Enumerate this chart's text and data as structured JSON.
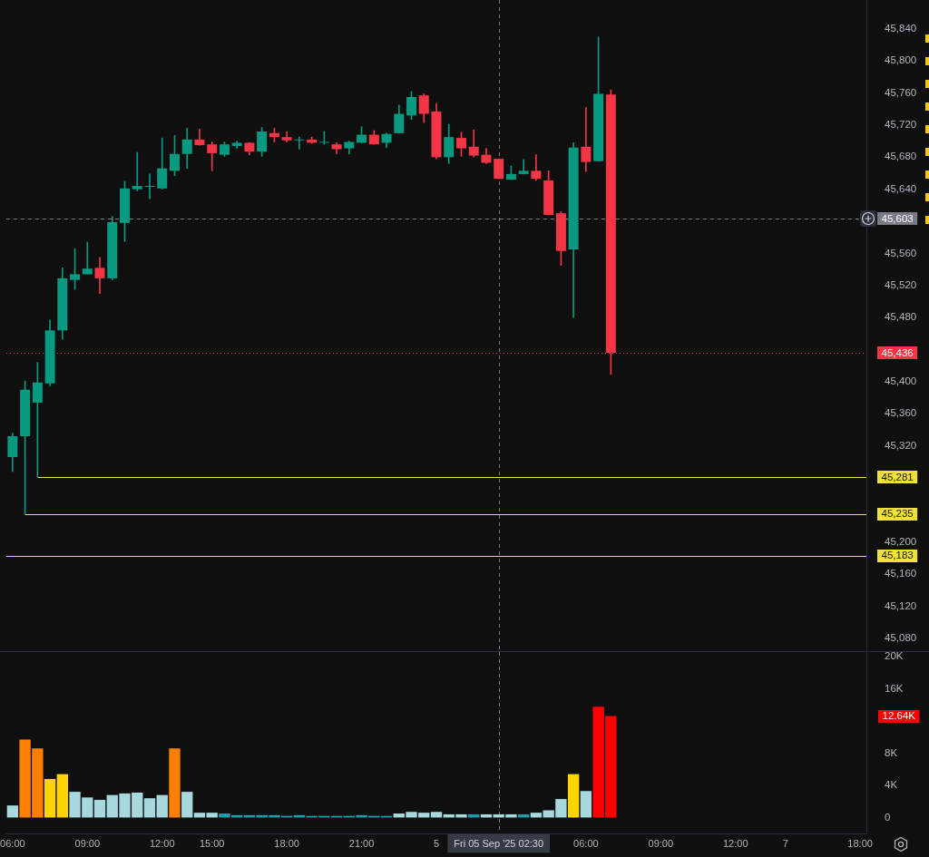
{
  "chart_data": [
    {
      "type": "candlestick",
      "categories": [
        "06:00",
        null,
        null,
        null,
        null,
        null,
        "09:00",
        null,
        null,
        null,
        null,
        null,
        "12:00",
        null,
        null,
        null,
        "15:00",
        null,
        null,
        null,
        null,
        null,
        "18:00",
        null,
        null,
        null,
        null,
        null,
        "21:00",
        null,
        null,
        null,
        null,
        null,
        "5",
        null,
        null,
        null,
        null,
        "Fri 05 Sep '25 02:30",
        null,
        null,
        null,
        null,
        null,
        null,
        "06:00",
        null,
        null,
        null,
        null,
        null,
        "09:00",
        null,
        null,
        null,
        null,
        null,
        "12:00",
        null,
        null,
        null,
        "7",
        null,
        null,
        null,
        null,
        null,
        "18:00"
      ],
      "ohlc": [
        [
          45306,
          45336,
          45288,
          45332
        ],
        [
          45332,
          45401,
          45235,
          45390
        ],
        [
          45374,
          45424,
          45281,
          45399
        ],
        [
          45398,
          45477,
          45395,
          45464
        ],
        [
          45464,
          45542,
          45453,
          45529
        ],
        [
          45527,
          45566,
          45515,
          45534
        ],
        [
          45534,
          45574,
          45534,
          45541
        ],
        [
          45542,
          45555,
          45510,
          45529
        ],
        [
          45529,
          45606,
          45527,
          45599
        ],
        [
          45598,
          45650,
          45575,
          45641
        ],
        [
          45640,
          45686,
          45638,
          45644
        ],
        [
          45643,
          45659,
          45628,
          45643
        ],
        [
          45641,
          45704,
          45640,
          45666
        ],
        [
          45663,
          45707,
          45657,
          45684
        ],
        [
          45684,
          45716,
          45666,
          45702
        ],
        [
          45702,
          45715,
          45695,
          45695
        ],
        [
          45696,
          45699,
          45663,
          45685
        ],
        [
          45683,
          45699,
          45681,
          45696
        ],
        [
          45694,
          45700,
          45691,
          45698
        ],
        [
          45698,
          45698,
          45683,
          45687
        ],
        [
          45687,
          45717,
          45681,
          45712
        ],
        [
          45710,
          45716,
          45699,
          45705
        ],
        [
          45705,
          45712,
          45699,
          45701
        ],
        [
          45701,
          45705,
          45690,
          45701
        ],
        [
          45702,
          45705,
          45697,
          45698
        ],
        [
          45698,
          45712,
          45696,
          45698
        ],
        [
          45696,
          45698,
          45684,
          45690
        ],
        [
          45691,
          45700,
          45684,
          45699
        ],
        [
          45698,
          45718,
          45698,
          45708
        ],
        [
          45708,
          45713,
          45696,
          45696
        ],
        [
          45698,
          45710,
          45692,
          45709
        ],
        [
          45710,
          45745,
          45710,
          45734
        ],
        [
          45732,
          45762,
          45727,
          45755
        ],
        [
          45757,
          45759,
          45723,
          45734
        ],
        [
          45737,
          45747,
          45678,
          45680
        ],
        [
          45680,
          45721,
          45672,
          45705
        ],
        [
          45704,
          45711,
          45681,
          45691
        ],
        [
          45693,
          45714,
          45680,
          45682
        ],
        [
          45683,
          45691,
          45672,
          45673
        ],
        [
          45678,
          45678,
          45653,
          45653
        ],
        [
          45652,
          45669,
          45652,
          45659
        ],
        [
          45659,
          45677,
          45659,
          45663
        ],
        [
          45663,
          45683,
          45651,
          45653
        ],
        [
          45651,
          45663,
          45608,
          45608
        ],
        [
          45610,
          45612,
          45545,
          45563
        ],
        [
          45565,
          45698,
          45480,
          45692
        ],
        [
          45693,
          45742,
          45662,
          45674
        ],
        [
          45675,
          45830,
          45675,
          45759
        ],
        [
          45758,
          45764,
          45409,
          45436
        ],
        null,
        null,
        null,
        null,
        null,
        null,
        null,
        null,
        null,
        null,
        null,
        null,
        null,
        null,
        null,
        null,
        null,
        null,
        null,
        null
      ],
      "colors": [
        "#089981",
        "#089981",
        "#089981",
        "#089981",
        "#089981",
        "#089981",
        "#089981",
        "#f23645",
        "#089981",
        "#089981",
        "#089981",
        "#089981",
        "#089981",
        "#089981",
        "#089981",
        "#f23645",
        "#f23645",
        "#089981",
        "#089981",
        "#f23645",
        "#089981",
        "#f23645",
        "#f23645",
        "#089981",
        "#f23645",
        "#089981",
        "#f23645",
        "#089981",
        "#089981",
        "#f23645",
        "#089981",
        "#089981",
        "#089981",
        "#f23645",
        "#f23645",
        "#089981",
        "#f23645",
        "#f23645",
        "#f23645",
        "#f23645",
        "#089981",
        "#089981",
        "#f23645",
        "#f23645",
        "#f23645",
        "#089981",
        "#f23645",
        "#089981",
        "#f23645",
        null,
        null,
        null,
        null,
        null,
        null,
        null,
        null,
        null,
        null,
        null,
        null,
        null,
        null,
        null,
        null,
        null,
        null,
        null,
        null
      ],
      "ylim": [
        45064,
        45876
      ],
      "yticks": [
        {
          "value": 45080,
          "label": "45,080"
        },
        {
          "value": 45120,
          "label": "45,120"
        },
        {
          "value": 45160,
          "label": "45,160"
        },
        {
          "value": 45200,
          "label": "45,200"
        },
        {
          "value": 45320,
          "label": "45,320"
        },
        {
          "value": 45360,
          "label": "45,360"
        },
        {
          "value": 45400,
          "label": "45,400"
        },
        {
          "value": 45480,
          "label": "45,480"
        },
        {
          "value": 45520,
          "label": "45,520"
        },
        {
          "value": 45560,
          "label": "45,560"
        },
        {
          "value": 45640,
          "label": "45,640"
        },
        {
          "value": 45680,
          "label": "45,680"
        },
        {
          "value": 45720,
          "label": "45,720"
        },
        {
          "value": 45760,
          "label": "45,760"
        },
        {
          "value": 45800,
          "label": "45,800"
        },
        {
          "value": 45840,
          "label": "45,840"
        }
      ],
      "tick_labels": "y",
      "ref_lines": [
        {
          "axis": "y",
          "value": 45603,
          "label": "45,603",
          "color": "#787b86",
          "line_style": "dashed"
        },
        {
          "axis": "y",
          "value": 45436,
          "label": "45,436",
          "color": "#f23645",
          "line_style": "dotted"
        },
        {
          "axis": "y",
          "value": 45281,
          "label": "45,281",
          "color": "#f2e13a",
          "line_style": "solid"
        },
        {
          "axis": "y",
          "value": 45235,
          "label": "45,235",
          "color": "#f2e13a",
          "line_style": "solid"
        },
        {
          "axis": "y",
          "value": 45183,
          "label": "45,183",
          "color": "#f2e13a",
          "line_style": "solid"
        },
        {
          "axis": "x",
          "value": "Fri 05 Sep '25 02:30",
          "color": "#787b86",
          "line_style": "dashed"
        }
      ]
    },
    {
      "type": "bar",
      "categories": [
        "06:00",
        null,
        null,
        null,
        null,
        null,
        "09:00",
        null,
        null,
        null,
        null,
        null,
        "12:00",
        null,
        null,
        null,
        "15:00",
        null,
        null,
        null,
        null,
        null,
        "18:00",
        null,
        null,
        null,
        null,
        null,
        "21:00",
        null,
        null,
        null,
        null,
        null,
        "5",
        null,
        null,
        null,
        null,
        "Fri 05 Sep '25 02:30",
        null,
        null,
        null,
        null,
        null,
        null,
        "06:00",
        null,
        null,
        null,
        null,
        null,
        "09:00",
        null,
        null,
        null,
        null,
        null,
        "12:00",
        null,
        null,
        null,
        "7",
        null,
        null,
        null,
        null,
        null,
        "18:00"
      ],
      "values": [
        1500,
        9700,
        8600,
        4800,
        5400,
        3200,
        2500,
        2200,
        2800,
        3000,
        3100,
        2400,
        2800,
        8600,
        3200,
        600,
        600,
        500,
        300,
        300,
        300,
        300,
        200,
        300,
        200,
        200,
        200,
        200,
        300,
        200,
        200,
        500,
        700,
        600,
        700,
        400,
        400,
        400,
        400,
        400,
        400,
        400,
        600,
        900,
        2300,
        5400,
        3300,
        13800,
        12640,
        null,
        null,
        null,
        null,
        null,
        null,
        null,
        null,
        null,
        null,
        null,
        null,
        null,
        null,
        null,
        null,
        null,
        null,
        null,
        null
      ],
      "colors": [
        "#a6d8de",
        "#ff8000",
        "#ff8000",
        "#ffd500",
        "#ffd500",
        "#a6d8de",
        "#a6d8de",
        "#a6d8de",
        "#a6d8de",
        "#a6d8de",
        "#a6d8de",
        "#a6d8de",
        "#a6d8de",
        "#ff8000",
        "#a6d8de",
        "#a6d8de",
        "#a6d8de",
        "#1f9cab",
        "#1f9cab",
        "#1f9cab",
        "#1f9cab",
        "#1f9cab",
        "#1f9cab",
        "#1f9cab",
        "#1f9cab",
        "#1f9cab",
        "#1f9cab",
        "#1f9cab",
        "#1f9cab",
        "#1f9cab",
        "#1f9cab",
        "#a6d8de",
        "#a6d8de",
        "#a6d8de",
        "#a6d8de",
        "#a6d8de",
        "#a6d8de",
        "#1f9cab",
        "#a6d8de",
        "#a6d8de",
        "#a6d8de",
        "#1f9cab",
        "#a6d8de",
        "#a6d8de",
        "#a6d8de",
        "#ffd500",
        "#a6d8de",
        "#ff0000",
        "#ff0000",
        null,
        null,
        null,
        null,
        null,
        null,
        null,
        null,
        null,
        null,
        null,
        null,
        null,
        null,
        null,
        null,
        null,
        null,
        null,
        null
      ],
      "ylim": [
        -1980,
        20600
      ],
      "yticks": [
        0,
        {
          "value": 4000,
          "label": "4K"
        },
        {
          "value": 8000,
          "label": "8K"
        },
        {
          "value": 16000,
          "label": "16K"
        },
        {
          "value": 20000,
          "label": "20K"
        }
      ],
      "ref_lines": [
        {
          "axis": "x",
          "value": "Fri 05 Sep '25 02:30",
          "color": "#787b86",
          "line_style": "dashed"
        }
      ],
      "annotations": [
        "12.64K"
      ]
    }
  ]
}
